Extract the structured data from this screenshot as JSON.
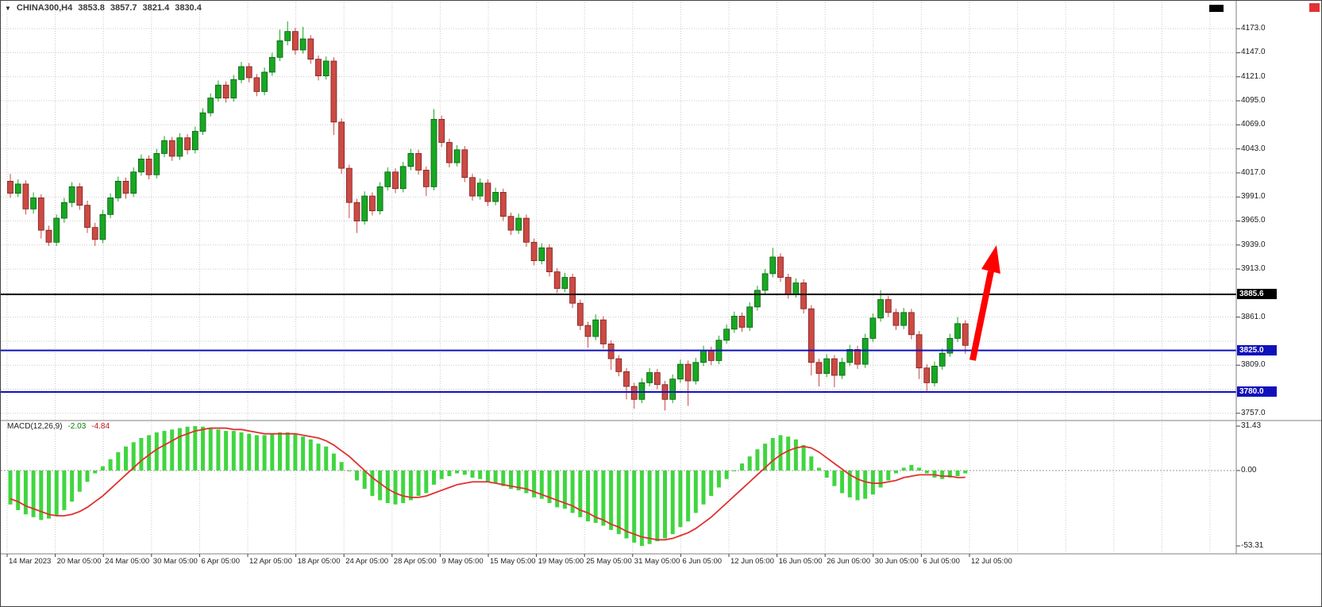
{
  "window": {
    "dropdown_icon": "▼",
    "symbol_label": "CHINA300,H4",
    "ohlc": {
      "open": "3853.8",
      "high": "3857.7",
      "low": "3821.4",
      "close": "3830.4"
    }
  },
  "macd_panel": {
    "label": "MACD(12,26,9)",
    "main_value": "-2.03",
    "signal_value": "-4.84"
  },
  "chart_data": {
    "type": "candlestick",
    "symbol": "CHINA300",
    "timeframe": "H4",
    "price_axis": {
      "ticks": [
        {
          "label": "4173.0",
          "value": 4173
        },
        {
          "label": "4147.0",
          "value": 4147
        },
        {
          "label": "4121.0",
          "value": 4121
        },
        {
          "label": "4095.0",
          "value": 4095
        },
        {
          "label": "4069.0",
          "value": 4069
        },
        {
          "label": "4043.0",
          "value": 4043
        },
        {
          "label": "4017.0",
          "value": 4017
        },
        {
          "label": "3991.0",
          "value": 3991
        },
        {
          "label": "3965.0",
          "value": 3965
        },
        {
          "label": "3939.0",
          "value": 3939
        },
        {
          "label": "3913.0",
          "value": 3913
        },
        {
          "label": "3861.0",
          "value": 3861
        },
        {
          "label": "3809.0",
          "value": 3809
        },
        {
          "label": "3757.0",
          "value": 3757
        }
      ],
      "badges": [
        {
          "label": "3885.6",
          "value": 3885.6,
          "color": "#000000"
        },
        {
          "label": "3825.0",
          "value": 3825,
          "color": "#1111bb"
        },
        {
          "label": "3780.0",
          "value": 3780,
          "color": "#1111bb"
        }
      ],
      "range": {
        "min": 3757,
        "max": 4173
      }
    },
    "time_axis": {
      "labels": [
        "14 Mar 2023",
        "20 Mar 05:00",
        "24 Mar 05:00",
        "30 Mar 05:00",
        "6 Apr 05:00",
        "12 Apr 05:00",
        "18 Apr 05:00",
        "24 Apr 05:00",
        "28 Apr 05:00",
        "9 May 05:00",
        "15 May 05:00",
        "19 May 05:00",
        "25 May 05:00",
        "31 May 05:00",
        "6 Jun 05:00",
        "12 Jun 05:00",
        "16 Jun 05:00",
        "26 Jun 05:00",
        "30 Jun 05:00",
        "6 Jul 05:00",
        "12 Jul 05:00"
      ]
    },
    "macd_axis": {
      "ticks": [
        {
          "label": "31.43",
          "value": 31.43
        },
        {
          "label": "0.00",
          "value": 0
        },
        {
          "label": "-53.31",
          "value": -53.31
        }
      ]
    },
    "levels": [
      {
        "value": 3885.6,
        "color": "#000000",
        "style": "solid",
        "label": "3885.6"
      },
      {
        "value": 3825,
        "color": "#1111bb",
        "style": "solid",
        "label": "3825.0"
      },
      {
        "value": 3780,
        "color": "#1111bb",
        "style": "solid",
        "label": "3780.0"
      }
    ],
    "candles": [
      [
        4008,
        4016,
        3990,
        3995
      ],
      [
        3995,
        4010,
        3991,
        4005
      ],
      [
        4005,
        4009,
        3972,
        3978
      ],
      [
        3978,
        3996,
        3973,
        3990
      ],
      [
        3990,
        3994,
        3946,
        3955
      ],
      [
        3955,
        3960,
        3938,
        3942
      ],
      [
        3942,
        3972,
        3938,
        3968
      ],
      [
        3968,
        3990,
        3963,
        3985
      ],
      [
        3985,
        4007,
        3980,
        4002
      ],
      [
        4002,
        4006,
        3977,
        3982
      ],
      [
        3982,
        3987,
        3952,
        3958
      ],
      [
        3958,
        3963,
        3938,
        3945
      ],
      [
        3945,
        3977,
        3941,
        3972
      ],
      [
        3972,
        3995,
        3968,
        3990
      ],
      [
        3990,
        4013,
        3986,
        4008
      ],
      [
        4008,
        4012,
        3989,
        3995
      ],
      [
        3995,
        4023,
        3991,
        4018
      ],
      [
        4018,
        4037,
        4014,
        4032
      ],
      [
        4032,
        4036,
        4010,
        4015
      ],
      [
        4015,
        4043,
        4011,
        4038
      ],
      [
        4038,
        4057,
        4034,
        4052
      ],
      [
        4052,
        4056,
        4030,
        4035
      ],
      [
        4035,
        4060,
        4031,
        4055
      ],
      [
        4055,
        4059,
        4037,
        4042
      ],
      [
        4042,
        4067,
        4038,
        4062
      ],
      [
        4062,
        4087,
        4058,
        4082
      ],
      [
        4082,
        4103,
        4078,
        4098
      ],
      [
        4098,
        4117,
        4094,
        4112
      ],
      [
        4112,
        4116,
        4093,
        4098
      ],
      [
        4098,
        4123,
        4094,
        4118
      ],
      [
        4118,
        4137,
        4114,
        4132
      ],
      [
        4132,
        4136,
        4115,
        4120
      ],
      [
        4120,
        4124,
        4100,
        4105
      ],
      [
        4105,
        4131,
        4101,
        4126
      ],
      [
        4126,
        4147,
        4122,
        4142
      ],
      [
        4142,
        4172,
        4138,
        4160
      ],
      [
        4160,
        4181,
        4155,
        4170
      ],
      [
        4170,
        4174,
        4145,
        4150
      ],
      [
        4150,
        4175,
        4146,
        4162
      ],
      [
        4162,
        4166,
        4135,
        4140
      ],
      [
        4140,
        4144,
        4117,
        4122
      ],
      [
        4122,
        4143,
        4118,
        4138
      ],
      [
        4138,
        4142,
        4058,
        4072
      ],
      [
        4072,
        4076,
        4016,
        4022
      ],
      [
        4022,
        4026,
        3968,
        3985
      ],
      [
        3985,
        3989,
        3952,
        3965
      ],
      [
        3965,
        3997,
        3961,
        3992
      ],
      [
        3992,
        3996,
        3971,
        3976
      ],
      [
        3976,
        4007,
        3972,
        4002
      ],
      [
        4002,
        4023,
        3998,
        4018
      ],
      [
        4018,
        4022,
        3995,
        4000
      ],
      [
        4000,
        4029,
        3996,
        4024
      ],
      [
        4024,
        4043,
        4020,
        4038
      ],
      [
        4038,
        4042,
        4015,
        4020
      ],
      [
        4020,
        4024,
        3992,
        4002
      ],
      [
        4002,
        4086,
        3998,
        4075
      ],
      [
        4075,
        4079,
        4045,
        4050
      ],
      [
        4050,
        4054,
        4023,
        4028
      ],
      [
        4028,
        4047,
        4024,
        4042
      ],
      [
        4042,
        4046,
        4007,
        4012
      ],
      [
        4012,
        4016,
        3987,
        3992
      ],
      [
        3992,
        4011,
        3988,
        4006
      ],
      [
        4006,
        4010,
        3981,
        3986
      ],
      [
        3986,
        4001,
        3982,
        3996
      ],
      [
        3996,
        4000,
        3965,
        3970
      ],
      [
        3970,
        3974,
        3950,
        3955
      ],
      [
        3955,
        3973,
        3951,
        3968
      ],
      [
        3968,
        3972,
        3937,
        3942
      ],
      [
        3942,
        3946,
        3917,
        3922
      ],
      [
        3922,
        3941,
        3918,
        3936
      ],
      [
        3936,
        3940,
        3905,
        3910
      ],
      [
        3910,
        3914,
        3887,
        3892
      ],
      [
        3892,
        3909,
        3888,
        3904
      ],
      [
        3904,
        3908,
        3871,
        3876
      ],
      [
        3876,
        3880,
        3847,
        3852
      ],
      [
        3852,
        3856,
        3828,
        3840
      ],
      [
        3840,
        3864,
        3836,
        3858
      ],
      [
        3858,
        3862,
        3827,
        3832
      ],
      [
        3832,
        3836,
        3804,
        3816
      ],
      [
        3816,
        3820,
        3797,
        3802
      ],
      [
        3802,
        3806,
        3772,
        3786
      ],
      [
        3786,
        3790,
        3762,
        3772
      ],
      [
        3772,
        3795,
        3768,
        3790
      ],
      [
        3790,
        3806,
        3786,
        3801
      ],
      [
        3801,
        3805,
        3783,
        3788
      ],
      [
        3788,
        3792,
        3760,
        3772
      ],
      [
        3772,
        3799,
        3768,
        3794
      ],
      [
        3794,
        3815,
        3790,
        3810
      ],
      [
        3810,
        3814,
        3765,
        3792
      ],
      [
        3792,
        3817,
        3788,
        3812
      ],
      [
        3812,
        3830,
        3808,
        3825
      ],
      [
        3825,
        3829,
        3809,
        3814
      ],
      [
        3814,
        3841,
        3810,
        3836
      ],
      [
        3836,
        3853,
        3832,
        3848
      ],
      [
        3848,
        3867,
        3844,
        3862
      ],
      [
        3862,
        3866,
        3845,
        3850
      ],
      [
        3850,
        3877,
        3846,
        3872
      ],
      [
        3872,
        3895,
        3868,
        3890
      ],
      [
        3890,
        3913,
        3886,
        3908
      ],
      [
        3908,
        3936,
        3904,
        3926
      ],
      [
        3926,
        3930,
        3899,
        3904
      ],
      [
        3904,
        3908,
        3881,
        3886
      ],
      [
        3886,
        3903,
        3882,
        3898
      ],
      [
        3898,
        3902,
        3865,
        3870
      ],
      [
        3870,
        3874,
        3798,
        3812
      ],
      [
        3812,
        3816,
        3786,
        3800
      ],
      [
        3800,
        3821,
        3796,
        3816
      ],
      [
        3816,
        3820,
        3785,
        3798
      ],
      [
        3798,
        3817,
        3794,
        3812
      ],
      [
        3812,
        3831,
        3808,
        3826
      ],
      [
        3826,
        3830,
        3805,
        3810
      ],
      [
        3810,
        3843,
        3806,
        3838
      ],
      [
        3838,
        3865,
        3834,
        3860
      ],
      [
        3860,
        3890,
        3856,
        3880
      ],
      [
        3880,
        3884,
        3861,
        3866
      ],
      [
        3866,
        3870,
        3847,
        3852
      ],
      [
        3852,
        3871,
        3848,
        3866
      ],
      [
        3866,
        3870,
        3837,
        3842
      ],
      [
        3842,
        3846,
        3794,
        3806
      ],
      [
        3806,
        3810,
        3781,
        3790
      ],
      [
        3790,
        3813,
        3786,
        3808
      ],
      [
        3808,
        3827,
        3804,
        3822
      ],
      [
        3822,
        3843,
        3818,
        3838
      ],
      [
        3838,
        3861,
        3834,
        3854
      ],
      [
        3853.8,
        3857.7,
        3821.4,
        3830.4
      ]
    ],
    "indicator": {
      "name": "MACD",
      "params": [
        12,
        26,
        9
      ],
      "last_values": {
        "macd": -2.03,
        "signal": -4.84
      },
      "histogram": [
        -24,
        -28,
        -31,
        -33,
        -35,
        -34,
        -32,
        -28,
        -22,
        -15,
        -8,
        -2,
        3,
        8,
        13,
        17,
        20,
        23,
        25,
        27,
        28,
        29,
        30,
        31,
        31.4,
        31,
        30,
        29,
        28,
        28,
        27,
        26,
        25,
        25,
        26,
        27,
        27,
        26,
        24,
        22,
        19,
        17,
        12,
        6,
        0,
        -7,
        -13,
        -18,
        -21,
        -23,
        -24,
        -23,
        -21,
        -18,
        -16,
        -10,
        -6,
        -4,
        -2,
        -3,
        -5,
        -6,
        -8,
        -9,
        -11,
        -13,
        -14,
        -16,
        -19,
        -20,
        -23,
        -26,
        -27,
        -30,
        -33,
        -36,
        -37,
        -39,
        -42,
        -45,
        -48,
        -51,
        -53.3,
        -52,
        -50,
        -48,
        -45,
        -40,
        -36,
        -30,
        -24,
        -18,
        -12,
        -6,
        0,
        5,
        10,
        15,
        19,
        23,
        25,
        24,
        22,
        18,
        10,
        2,
        -5,
        -11,
        -16,
        -19,
        -21,
        -20,
        -17,
        -12,
        -7,
        -2,
        2,
        4,
        2,
        -2,
        -5,
        -6,
        -5,
        -4,
        -2.03
      ],
      "signal": [
        -20,
        -22,
        -25,
        -27,
        -29,
        -31,
        -32,
        -32,
        -31,
        -29,
        -26,
        -22,
        -18,
        -13,
        -8,
        -3,
        2,
        7,
        11,
        15,
        18,
        21,
        24,
        26,
        28,
        29,
        30,
        30,
        30,
        29,
        29,
        28,
        27,
        26,
        26,
        26,
        26,
        26,
        25,
        24,
        23,
        21,
        18,
        14,
        10,
        5,
        0,
        -5,
        -9,
        -13,
        -16,
        -18,
        -19,
        -19,
        -18,
        -16,
        -14,
        -12,
        -10,
        -9,
        -8,
        -8,
        -8,
        -9,
        -10,
        -11,
        -12,
        -13,
        -15,
        -17,
        -19,
        -21,
        -23,
        -25,
        -28,
        -30,
        -33,
        -35,
        -38,
        -40,
        -43,
        -45,
        -47,
        -48,
        -49,
        -49,
        -48,
        -46,
        -44,
        -41,
        -37,
        -33,
        -28,
        -23,
        -18,
        -13,
        -8,
        -3,
        2,
        7,
        11,
        14,
        16,
        17,
        16,
        13,
        9,
        5,
        1,
        -3,
        -6,
        -8,
        -9,
        -9,
        -8,
        -7,
        -5,
        -4,
        -3,
        -3,
        -3,
        -4,
        -4,
        -5,
        -4.84
      ]
    },
    "annotations": [
      {
        "type": "arrow",
        "direction": "up",
        "color": "#ff0000"
      }
    ],
    "colors": {
      "up": "#17a822",
      "up_border": "#0a5c12",
      "down": "#cc4a44",
      "down_border": "#7c1f1c",
      "histogram": "#3fd63f",
      "signal_line": "#e03030",
      "level_blue": "#1111bb",
      "grid": "#c9c9c9"
    }
  }
}
